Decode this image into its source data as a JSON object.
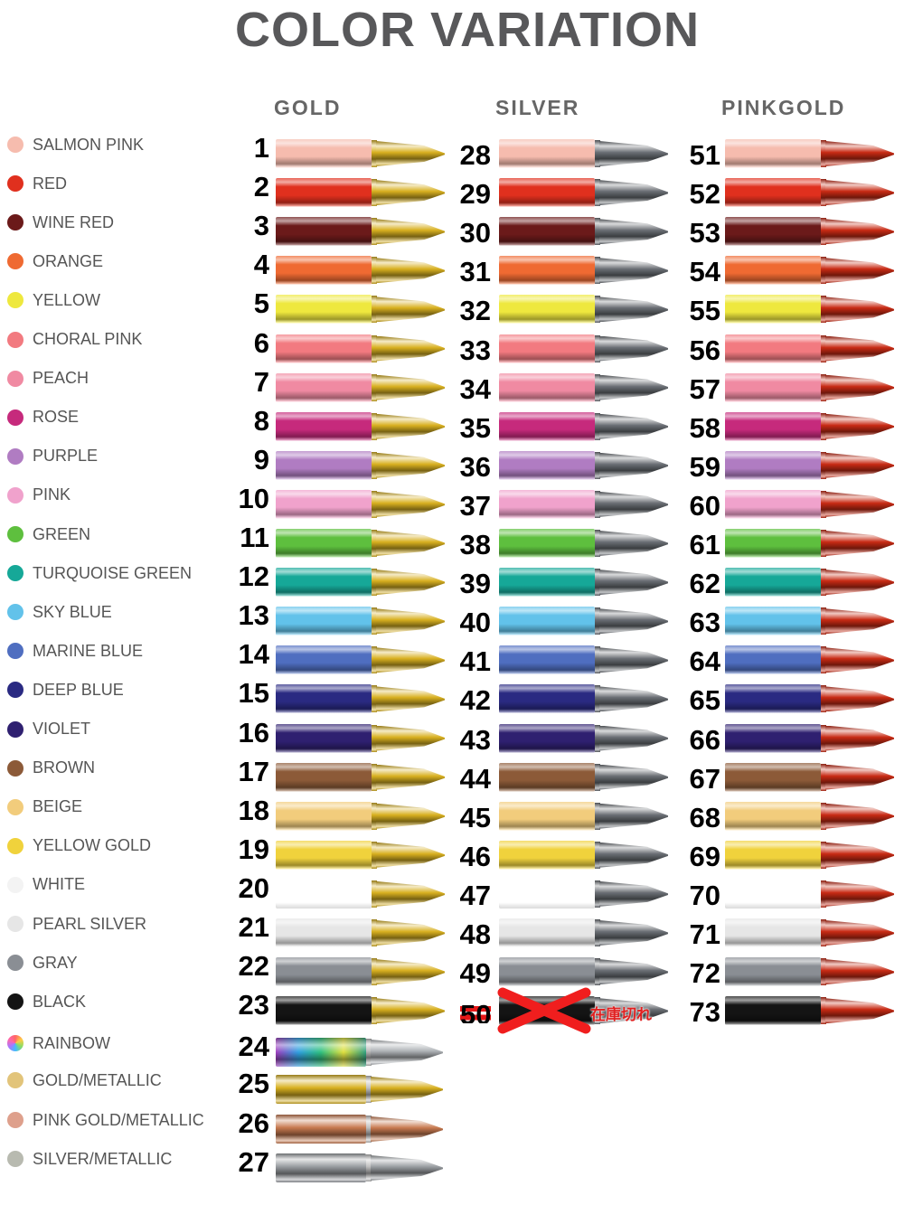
{
  "title": "COLOR VARIATION",
  "columns": [
    {
      "name": "GOLD",
      "tip": "gold",
      "numbers": [
        "1",
        "2",
        "3",
        "4",
        "5",
        "6",
        "7",
        "8",
        "9",
        "10",
        "11",
        "12",
        "13",
        "14",
        "15",
        "16",
        "17",
        "18",
        "19",
        "20",
        "21",
        "22",
        "23",
        "24",
        "25",
        "26",
        "27"
      ]
    },
    {
      "name": "SILVER",
      "tip": "silver",
      "numbers": [
        "28",
        "29",
        "30",
        "31",
        "32",
        "33",
        "34",
        "35",
        "36",
        "37",
        "38",
        "39",
        "40",
        "41",
        "42",
        "43",
        "44",
        "45",
        "46",
        "47",
        "48",
        "49",
        "50"
      ],
      "sold_out_number": "50"
    },
    {
      "name": "PINKGOLD",
      "tip": "pinkgold",
      "numbers": [
        "51",
        "52",
        "53",
        "54",
        "55",
        "56",
        "57",
        "58",
        "59",
        "60",
        "61",
        "62",
        "63",
        "64",
        "65",
        "66",
        "67",
        "68",
        "69",
        "70",
        "71",
        "72",
        "73"
      ]
    }
  ],
  "sold_out_label": "在庫切れ",
  "colors": [
    {
      "name": "SALMON PINK",
      "hex": "#f6bcae"
    },
    {
      "name": "RED",
      "hex": "#e0301e"
    },
    {
      "name": "WINE RED",
      "hex": "#6b1a1a"
    },
    {
      "name": "ORANGE",
      "hex": "#ef6a32"
    },
    {
      "name": "YELLOW",
      "hex": "#eee83e"
    },
    {
      "name": "CHORAL PINK",
      "hex": "#f27a80"
    },
    {
      "name": "PEACH",
      "hex": "#f08aa2"
    },
    {
      "name": "ROSE",
      "hex": "#c62a7c"
    },
    {
      "name": "PURPLE",
      "hex": "#b07cc2"
    },
    {
      "name": "PINK",
      "hex": "#f0a2cc"
    },
    {
      "name": "GREEN",
      "hex": "#5ebf3e"
    },
    {
      "name": "TURQUOISE GREEN",
      "hex": "#16a898"
    },
    {
      "name": "SKY BLUE",
      "hex": "#62c2ea"
    },
    {
      "name": "MARINE BLUE",
      "hex": "#4f6ec0"
    },
    {
      "name": "DEEP BLUE",
      "hex": "#2a2a82"
    },
    {
      "name": "VIOLET",
      "hex": "#2f2070"
    },
    {
      "name": "BROWN",
      "hex": "#8c5a38"
    },
    {
      "name": "BEIGE",
      "hex": "#f2cc7c"
    },
    {
      "name": "YELLOW GOLD",
      "hex": "#f0d23c"
    },
    {
      "name": "WHITE",
      "hex": "#ffffff"
    },
    {
      "name": "PEARL SILVER",
      "hex": "#e6e6e6"
    },
    {
      "name": "GRAY",
      "hex": "#8a8e94"
    },
    {
      "name": "BLACK",
      "hex": "#141414"
    },
    {
      "name": "RAINBOW",
      "hex": "rainbow"
    },
    {
      "name": "GOLD/METALLIC",
      "hex": "#e2c47a"
    },
    {
      "name": "PINK GOLD/METALLIC",
      "hex": "#dea08c"
    },
    {
      "name": "SILVER/METALLIC",
      "hex": "#b8bab0"
    }
  ],
  "tip_colors": {
    "gold": "#d8b020",
    "silver": "#6a6e74",
    "pinkgold": "#c82a14"
  }
}
